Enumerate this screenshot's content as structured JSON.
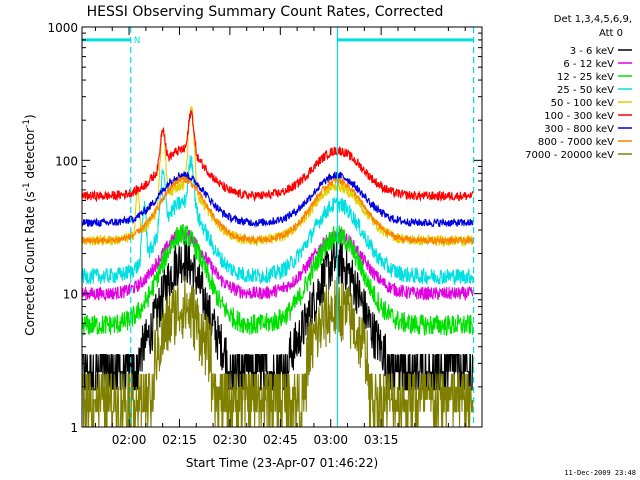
{
  "chart_data": {
    "type": "line",
    "title": "HESSI Observing Summary Count Rates, Corrected",
    "xlabel": "Start Time (23-Apr-07 01:46:22)",
    "ylabel_main": "Corrected Count Rate (s",
    "ylabel_sup1": "-1",
    "ylabel_mid": " detector",
    "ylabel_sup2": "-1",
    "ylabel_end": ")",
    "yscale": "log",
    "xlim": [
      106,
      225
    ],
    "ylim": [
      1,
      1000
    ],
    "x_ticks": [
      {
        "x": 120,
        "label": "02:00"
      },
      {
        "x": 135,
        "label": "02:15"
      },
      {
        "x": 150,
        "label": "02:30"
      },
      {
        "x": 165,
        "label": "02:45"
      },
      {
        "x": 180,
        "label": "03:00"
      },
      {
        "x": 195,
        "label": "03:15"
      }
    ],
    "y_ticks": [
      {
        "y": 1,
        "label": "1"
      },
      {
        "y": 10,
        "label": "10"
      },
      {
        "y": 100,
        "label": "100"
      },
      {
        "y": 1000,
        "label": "1000"
      }
    ],
    "legend_header": [
      "Det 1,3,4,5,6,9,",
      "Att 0"
    ],
    "legend_placement": "right",
    "series": [
      {
        "name": "3 - 6 keV",
        "color": "#000000",
        "base": 2.6,
        "peak": 18,
        "noise": 0.18
      },
      {
        "name": "6 - 12 keV",
        "color": "#e000e0",
        "base": 10,
        "peak": 28,
        "noise": 0.05
      },
      {
        "name": "12 - 25 keV",
        "color": "#00e000",
        "base": 5.8,
        "peak": 28,
        "noise": 0.08
      },
      {
        "name": "25 - 50 keV",
        "color": "#00e0e0",
        "base": 13.5,
        "peak": 48,
        "noise": 0.06
      },
      {
        "name": "50 - 100 keV",
        "color": "#e0d000",
        "base": 25,
        "peak": 65,
        "noise": 0.04
      },
      {
        "name": "100 - 300 keV",
        "color": "#ff0000",
        "base": 54,
        "peak": 120,
        "noise": 0.035
      },
      {
        "name": "300 - 800 keV",
        "color": "#0000e0",
        "base": 34,
        "peak": 78,
        "noise": 0.03
      },
      {
        "name": "800 - 7000 keV",
        "color": "#ff8000",
        "base": 25,
        "peak": 72,
        "noise": 0.025
      },
      {
        "name": "7000 - 20000 keV",
        "color": "#808000",
        "base": 1.6,
        "peak": 8,
        "noise": 0.25
      }
    ],
    "night_markers": [
      {
        "x": 120.5,
        "type": "night-start"
      },
      {
        "x": 182,
        "type": "night-end"
      },
      {
        "x": 222.5,
        "type": "night-start"
      }
    ],
    "bar_segments": [
      {
        "x0": 106,
        "x1": 120.5,
        "y": 800,
        "label": "N"
      },
      {
        "x0": 182,
        "x1": 222.5,
        "y": 800,
        "label": ""
      }
    ],
    "timestamp": "11-Dec-2009 23:48",
    "colors": {
      "bar": "#00e0e0",
      "axis": "#000000"
    }
  }
}
